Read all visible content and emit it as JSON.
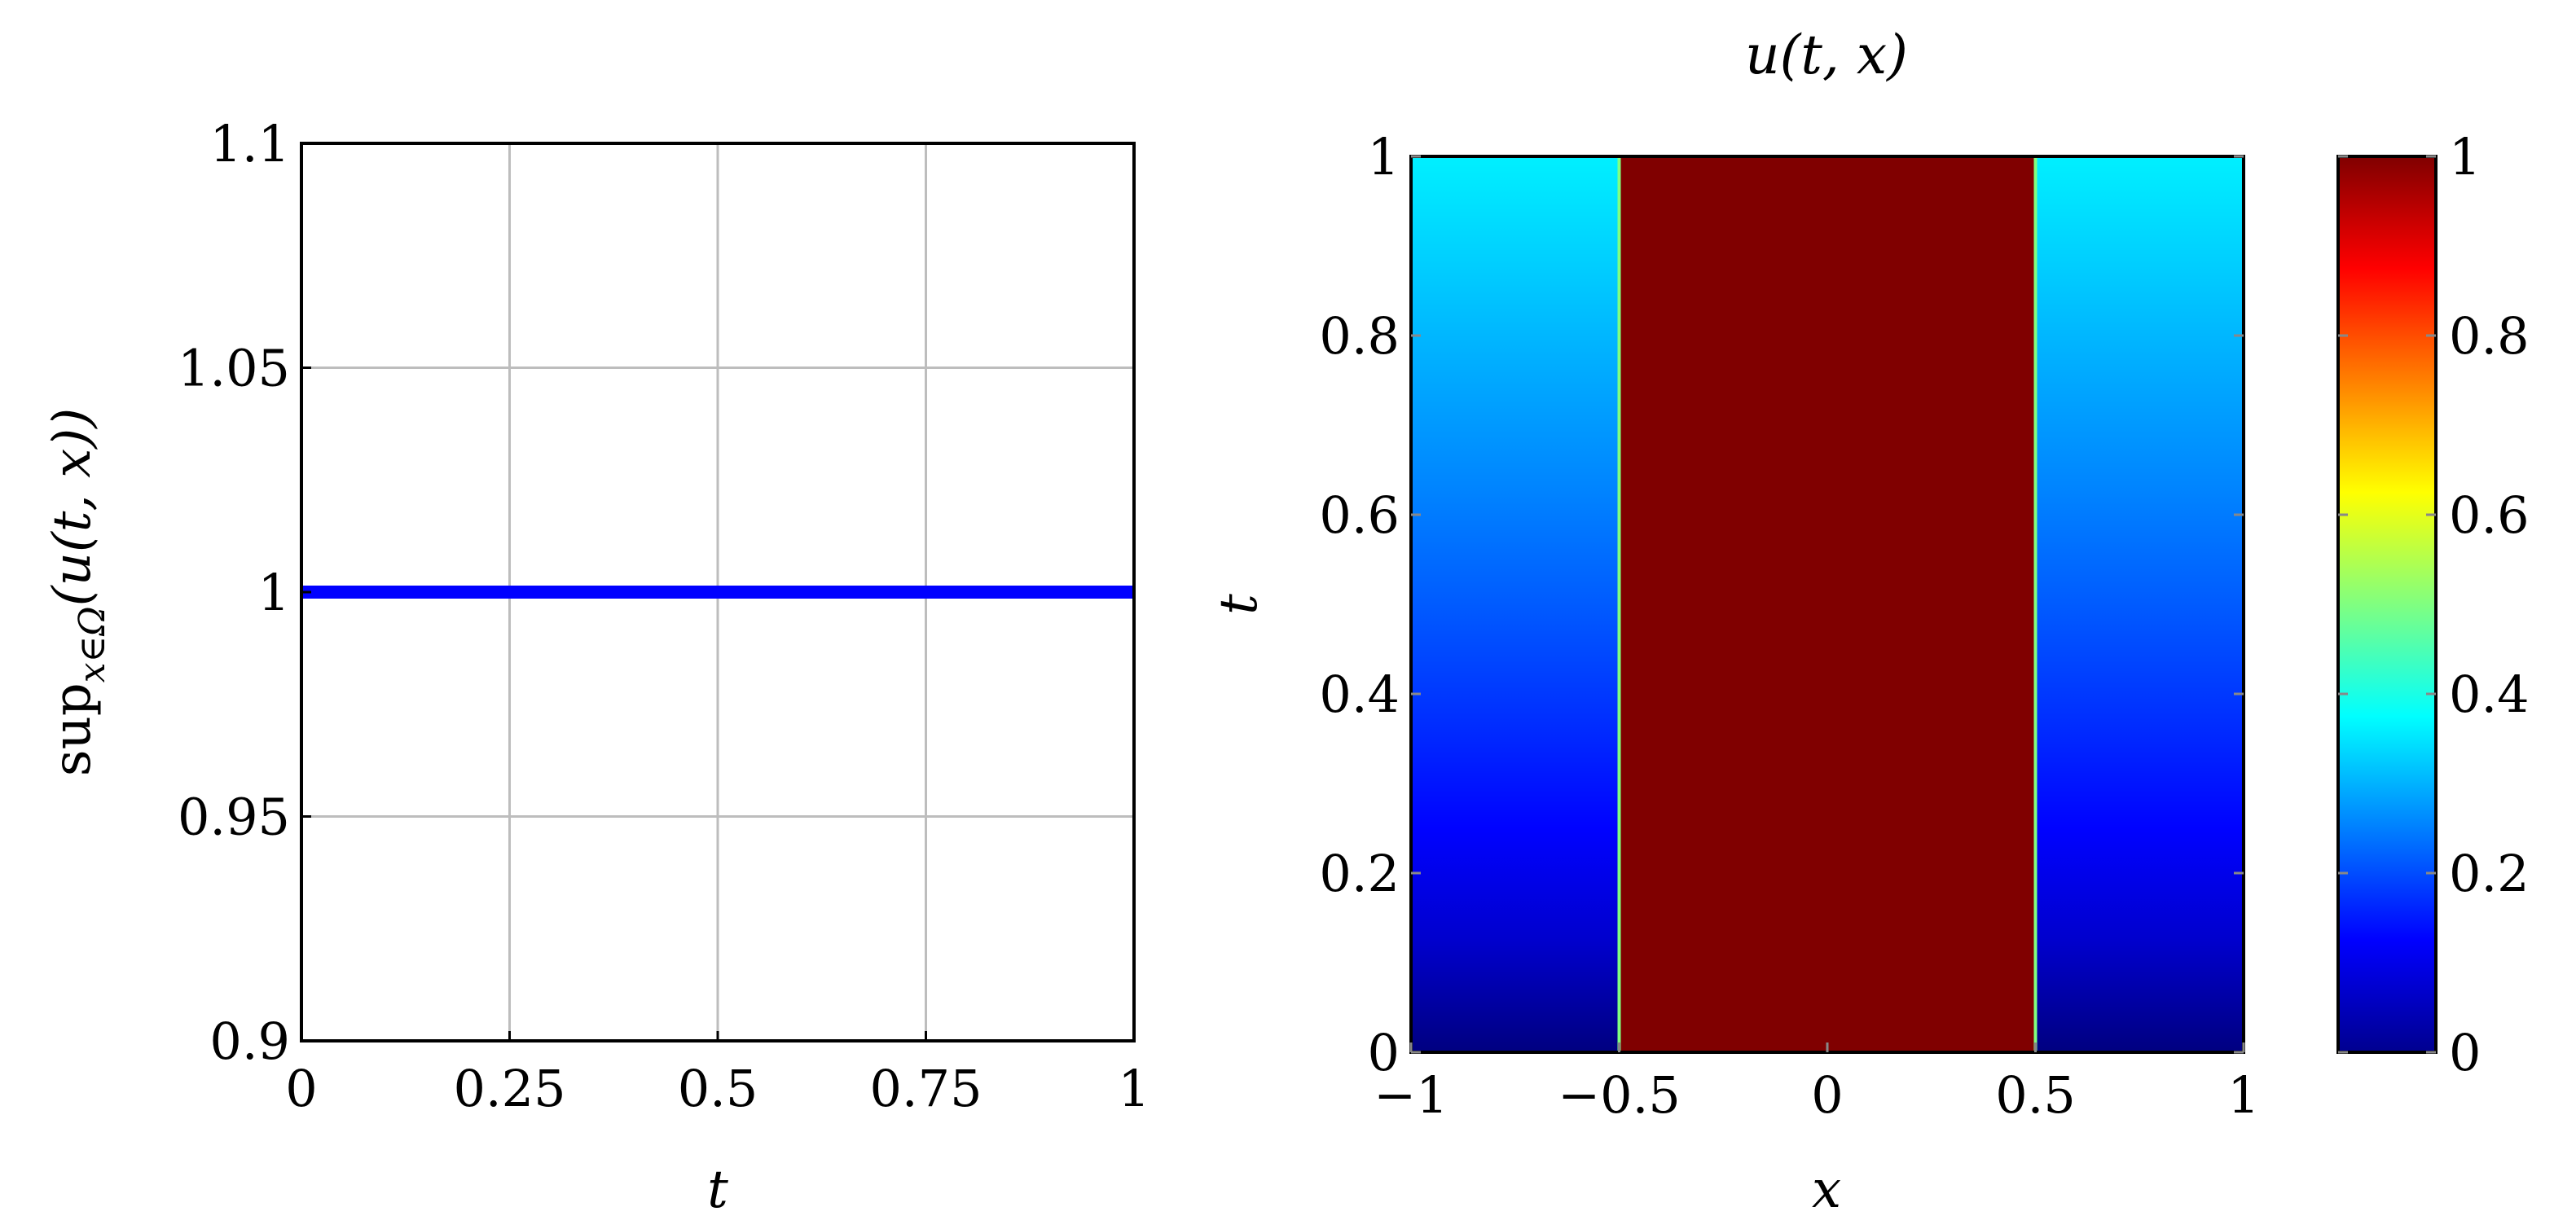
{
  "chart_data": [
    {
      "type": "line",
      "xlabel": "t",
      "ylabel": "sup",
      "ylabel_subscript": "x∈Ω",
      "ylabel_tail": "(u(t, x))",
      "xlim": [
        0,
        1
      ],
      "ylim": [
        0.9,
        1.1
      ],
      "x_ticks": [
        0,
        0.25,
        0.5,
        0.75,
        1
      ],
      "x_tick_labels": [
        "0",
        "0.25",
        "0.5",
        "0.75",
        "1"
      ],
      "y_ticks": [
        0.9,
        0.95,
        1,
        1.05,
        1.1
      ],
      "y_tick_labels": [
        "0.9",
        "0.95",
        "1",
        "1.05",
        "1.1"
      ],
      "grid": true,
      "series": [
        {
          "x": [
            0,
            0.25,
            0.5,
            0.75,
            1
          ],
          "y": [
            1,
            1,
            1,
            1,
            1
          ],
          "color": "#0000ff"
        }
      ]
    },
    {
      "type": "heatmap",
      "title": "u(t, x)",
      "xlabel": "x",
      "ylabel": "t",
      "xlim": [
        -1,
        1
      ],
      "ylim": [
        0,
        1
      ],
      "x_ticks": [
        -1,
        -0.5,
        0,
        0.5,
        1
      ],
      "x_tick_labels": [
        "−1",
        "−0.5",
        "0",
        "0.5",
        "1"
      ],
      "y_ticks": [
        0,
        0.2,
        0.4,
        0.6,
        0.8,
        1
      ],
      "y_tick_labels": [
        "0",
        "0.2",
        "0.4",
        "0.6",
        "0.8",
        "1"
      ],
      "colormap": "jet",
      "colorbar": {
        "range": [
          0,
          1
        ],
        "ticks": [
          0,
          0.2,
          0.4,
          0.6,
          0.8,
          1
        ],
        "tick_labels": [
          "0",
          "0.2",
          "0.4",
          "0.6",
          "0.8",
          "1"
        ]
      },
      "regions": [
        {
          "x_range": [
            -1,
            -0.5
          ],
          "value_at_t0": 0.0,
          "value_at_t1": 0.36
        },
        {
          "x_range": [
            -0.5,
            0.5
          ],
          "value_at_t0": 1.0,
          "value_at_t1": 1.0
        },
        {
          "x_range": [
            0.5,
            1
          ],
          "value_at_t0": 0.0,
          "value_at_t1": 0.36
        }
      ]
    }
  ]
}
